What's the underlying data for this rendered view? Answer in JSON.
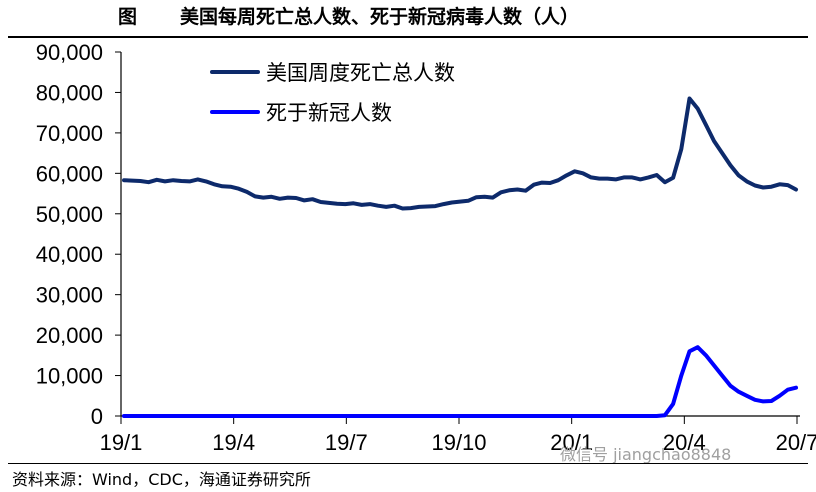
{
  "header": {
    "label": "图",
    "title": "美国每周死亡总人数、死于新冠病毒人数（人）"
  },
  "source": "资料来源：Wind，CDC，海通证券研究所",
  "watermark": "微信号 jiangchao8848",
  "chart_data": {
    "type": "line",
    "title": "美国每周死亡总人数、死于新冠病毒人数（人）",
    "xlabel": "",
    "ylabel": "",
    "ylim": [
      0,
      90000
    ],
    "yticks": [
      "0",
      "10,000",
      "20,000",
      "30,000",
      "40,000",
      "50,000",
      "60,000",
      "70,000",
      "80,000",
      "90,000"
    ],
    "xticks": [
      "19/1",
      "19/4",
      "19/7",
      "19/10",
      "20/1",
      "20/4",
      "20/7"
    ],
    "legend_position": "top-left",
    "grid": false,
    "week_index": [
      0,
      1,
      2,
      3,
      4,
      5,
      6,
      7,
      8,
      9,
      10,
      11,
      12,
      13,
      14,
      15,
      16,
      17,
      18,
      19,
      20,
      21,
      22,
      23,
      24,
      25,
      26,
      27,
      28,
      29,
      30,
      31,
      32,
      33,
      34,
      35,
      36,
      37,
      38,
      39,
      40,
      41,
      42,
      43,
      44,
      45,
      46,
      47,
      48,
      49,
      50,
      51,
      52,
      53,
      54,
      55,
      56,
      57,
      58,
      59,
      60,
      61,
      62,
      63,
      64,
      65,
      66,
      67,
      68,
      69,
      70,
      71,
      72,
      73,
      74,
      75,
      76,
      77,
      78,
      79,
      80,
      81,
      82
    ],
    "series": [
      {
        "name": "美国周度死亡总人数",
        "color": "#0d2a6b",
        "values": [
          58300,
          58200,
          58100,
          57800,
          58400,
          58000,
          58300,
          58100,
          58000,
          58500,
          58000,
          57300,
          56800,
          56700,
          56200,
          55400,
          54300,
          54000,
          54200,
          53700,
          54000,
          53900,
          53300,
          53600,
          52900,
          52700,
          52500,
          52400,
          52600,
          52200,
          52400,
          52000,
          51700,
          52000,
          51300,
          51400,
          51700,
          51800,
          51900,
          52400,
          52800,
          53000,
          53200,
          54100,
          54200,
          54000,
          55300,
          55800,
          56000,
          55700,
          57200,
          57700,
          57600,
          58300,
          59500,
          60500,
          60000,
          59000,
          58700,
          58700,
          58500,
          59000,
          59000,
          58500,
          59000,
          59600,
          57800,
          58900,
          66000,
          78500,
          76000,
          72000,
          68000,
          65000,
          62000,
          59500,
          58000,
          57000,
          56500,
          56700,
          57300,
          57100,
          56000
        ]
      },
      {
        "name": "死于新冠人数",
        "color": "#0000ff",
        "values": [
          0,
          0,
          0,
          0,
          0,
          0,
          0,
          0,
          0,
          0,
          0,
          0,
          0,
          0,
          0,
          0,
          0,
          0,
          0,
          0,
          0,
          0,
          0,
          0,
          0,
          0,
          0,
          0,
          0,
          0,
          0,
          0,
          0,
          0,
          0,
          0,
          0,
          0,
          0,
          0,
          0,
          0,
          0,
          0,
          0,
          0,
          0,
          0,
          0,
          0,
          0,
          0,
          0,
          0,
          0,
          0,
          0,
          0,
          0,
          0,
          0,
          0,
          0,
          0,
          0,
          0,
          200,
          3000,
          10000,
          16000,
          17000,
          15000,
          12500,
          10000,
          7500,
          6000,
          5000,
          4000,
          3600,
          3700,
          5000,
          6500,
          7000
        ]
      }
    ]
  }
}
